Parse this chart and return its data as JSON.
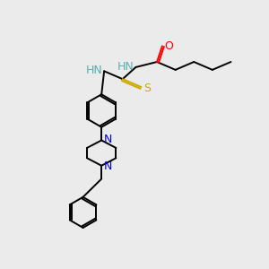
{
  "background_color": "#ebebeb",
  "bond_color": "#000000",
  "atom_colors": {
    "N_teal": "#5aafaf",
    "O": "#ff0000",
    "S": "#ccaa00",
    "N_blue": "#0000ee",
    "C": "#000000"
  },
  "figsize": [
    3.0,
    3.0
  ],
  "dpi": 100,
  "xlim": [
    0,
    10
  ],
  "ylim": [
    0,
    10
  ]
}
